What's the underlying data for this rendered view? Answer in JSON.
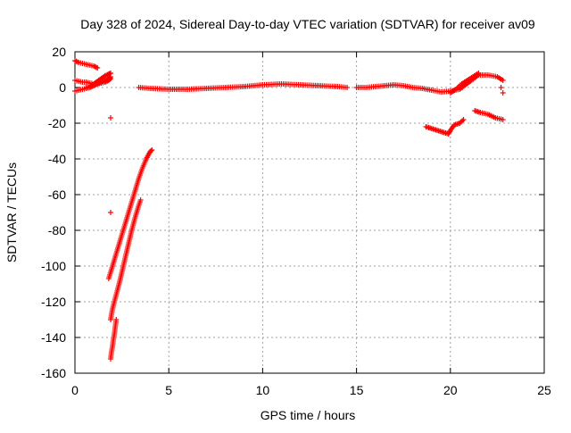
{
  "chart_data": {
    "type": "scatter",
    "title": "Day 328 of 2024, Sidereal Day-to-day VTEC variation (SDTVAR) for receiver av09",
    "xlabel": "GPS time / hours",
    "ylabel": "SDTVAR / TECUs",
    "xlim": [
      0,
      25
    ],
    "ylim": [
      -160,
      20
    ],
    "xticks": [
      0,
      5,
      10,
      15,
      20,
      25
    ],
    "yticks": [
      -160,
      -140,
      -120,
      -100,
      -80,
      -60,
      -40,
      -20,
      0,
      20
    ],
    "grid": true,
    "marker": "+",
    "color": "#ff0000",
    "segments": [
      {
        "name": "early-upper",
        "x": [
          0.0,
          0.2,
          0.4,
          0.6,
          0.8,
          1.0,
          1.2
        ],
        "y": [
          15,
          14,
          13.5,
          13,
          12.5,
          12,
          11
        ]
      },
      {
        "name": "early-band-a",
        "x": [
          0.0,
          0.2,
          0.4,
          0.6,
          0.8,
          1.0,
          1.2,
          1.4,
          1.6,
          1.8,
          1.9
        ],
        "y": [
          -2,
          -1.5,
          -1,
          -0.5,
          0,
          1,
          2,
          3,
          4,
          5,
          6
        ]
      },
      {
        "name": "early-band-b",
        "x": [
          0.0,
          0.2,
          0.4,
          0.6,
          0.8,
          1.0,
          1.2,
          1.4,
          1.6,
          1.8,
          1.9
        ],
        "y": [
          4,
          3.5,
          3,
          3,
          2.5,
          2,
          2,
          2.5,
          3,
          4,
          5
        ]
      },
      {
        "name": "early-band-c",
        "x": [
          0.6,
          0.8,
          1.0,
          1.2,
          1.4,
          1.6,
          1.8,
          1.9
        ],
        "y": [
          0,
          0.5,
          2,
          3.5,
          5,
          6.5,
          7.5,
          8
        ]
      },
      {
        "name": "outliers",
        "x": [
          1.9,
          1.9
        ],
        "y": [
          -17,
          -70
        ]
      },
      {
        "name": "steep-left",
        "x": [
          1.8,
          2.0,
          2.2,
          2.4,
          2.6,
          2.8,
          3.0,
          3.2,
          3.4,
          3.6,
          3.8,
          4.0,
          4.1
        ],
        "y": [
          -107,
          -100,
          -93,
          -86,
          -79,
          -72,
          -65,
          -58,
          -51,
          -45,
          -40,
          -36,
          -35
        ]
      },
      {
        "name": "steep-right",
        "x": [
          1.9,
          2.0,
          2.2,
          2.4,
          2.6,
          2.8,
          3.0,
          3.2,
          3.4,
          3.5
        ],
        "y": [
          -130,
          -124,
          -116,
          -108,
          -99,
          -90,
          -81,
          -73,
          -66,
          -63
        ]
      },
      {
        "name": "deep-dip",
        "x": [
          1.9,
          1.95,
          2.0,
          2.05,
          2.1,
          2.15,
          2.2
        ],
        "y": [
          -152,
          -148,
          -145,
          -141,
          -138,
          -134,
          -130
        ]
      },
      {
        "name": "main-band",
        "x": [
          3.4,
          4.0,
          5.0,
          6.0,
          7.0,
          8.0,
          9.0,
          10.0,
          11.0,
          12.0,
          13.0,
          14.0,
          14.5
        ],
        "y": [
          0,
          -0.5,
          -1,
          -1,
          -0.5,
          0,
          0.5,
          1.5,
          2,
          1.5,
          1,
          0.5,
          0
        ]
      },
      {
        "name": "midday-band",
        "x": [
          15.0,
          15.5,
          16.0,
          16.5,
          17.0,
          17.5,
          18.0,
          18.5,
          19.0,
          19.5,
          20.0,
          20.5,
          21.0,
          21.5,
          22.0,
          22.5,
          22.8
        ],
        "y": [
          0,
          0,
          0.5,
          1,
          1.5,
          1,
          0,
          -0.5,
          -1.5,
          -2.5,
          -2,
          -1,
          3,
          7,
          7,
          6,
          4
        ]
      },
      {
        "name": "late-lower-a",
        "x": [
          18.7,
          19.0,
          19.3,
          19.6,
          19.9,
          20.0,
          20.2,
          20.5,
          20.7
        ],
        "y": [
          -22,
          -23,
          -24,
          -25,
          -26,
          -24,
          -21,
          -20,
          -18
        ]
      },
      {
        "name": "late-lower-b",
        "x": [
          21.3,
          21.6,
          22.0,
          22.4,
          22.8
        ],
        "y": [
          -13,
          -14,
          -15,
          -17,
          -18
        ]
      },
      {
        "name": "late-rise",
        "x": [
          20.0,
          20.3,
          20.6,
          20.9,
          21.2,
          21.5
        ],
        "y": [
          -3,
          -1,
          2,
          4,
          6,
          8
        ]
      },
      {
        "name": "late-end",
        "x": [
          22.7,
          22.8
        ],
        "y": [
          0,
          -3
        ]
      }
    ]
  }
}
